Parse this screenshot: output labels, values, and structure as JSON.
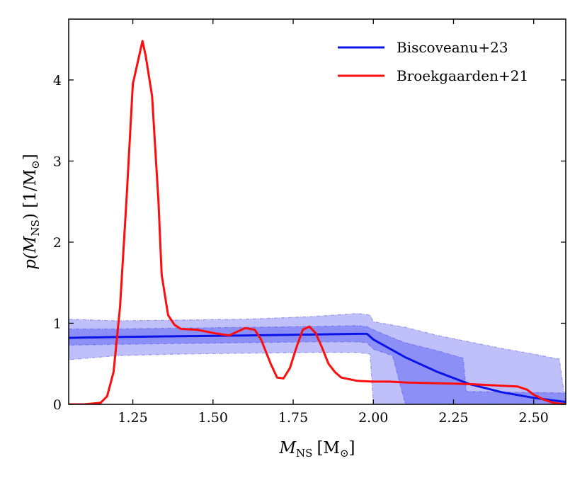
{
  "chart_data": {
    "type": "line",
    "xlabel_main": "M",
    "xlabel_sub": "NS",
    "xlabel_unit": "[M",
    "xlabel_unit_sub": "⊙",
    "xlabel_close": "]",
    "ylabel_pre": "p(M",
    "ylabel_sub": "NS",
    "ylabel_mid": ") [1/M",
    "ylabel_unit_sub": "⊙",
    "ylabel_close": "]",
    "xlim": [
      1.05,
      2.6
    ],
    "ylim": [
      0,
      4.75
    ],
    "xticks": [
      1.25,
      1.5,
      1.75,
      2.0,
      2.25,
      2.5
    ],
    "xtick_labels": [
      "1.25",
      "1.50",
      "1.75",
      "2.00",
      "2.25",
      "2.50"
    ],
    "yticks": [
      0,
      1,
      2,
      3,
      4
    ],
    "ytick_labels": [
      "0",
      "1",
      "2",
      "3",
      "4"
    ],
    "legend_position": "top-right",
    "series": [
      {
        "name": "Biscoveanu+23",
        "color": "#0a14e6",
        "x": [
          1.05,
          1.2,
          1.4,
          1.6,
          1.8,
          1.95,
          1.98,
          2.0,
          2.1,
          2.2,
          2.3,
          2.4,
          2.5,
          2.6
        ],
        "y": [
          0.82,
          0.83,
          0.84,
          0.85,
          0.86,
          0.87,
          0.87,
          0.8,
          0.58,
          0.4,
          0.25,
          0.15,
          0.08,
          0.03
        ],
        "band_90": {
          "x": [
            1.05,
            1.2,
            1.4,
            1.6,
            1.8,
            1.95,
            1.99,
            2.0,
            2.1,
            2.2,
            2.3,
            2.4,
            2.5,
            2.55,
            2.58,
            2.6
          ],
          "upper": [
            1.05,
            1.03,
            1.04,
            1.05,
            1.08,
            1.12,
            1.1,
            1.02,
            0.95,
            0.85,
            0.77,
            0.69,
            0.62,
            0.58,
            0.56,
            0.0
          ],
          "lower": [
            0.55,
            0.6,
            0.62,
            0.63,
            0.64,
            0.64,
            0.62,
            0.0,
            0.0,
            0.0,
            0.0,
            0.0,
            0.0,
            0.0,
            0.0,
            0.0
          ]
        },
        "band_50": {
          "x": [
            1.05,
            1.2,
            1.4,
            1.6,
            1.8,
            1.95,
            1.98,
            2.0,
            2.06,
            2.1,
            2.2,
            2.28,
            2.29,
            2.6
          ],
          "upper": [
            0.93,
            0.93,
            0.94,
            0.95,
            0.96,
            0.97,
            0.96,
            0.92,
            0.82,
            0.76,
            0.66,
            0.57,
            0.16,
            0.14
          ],
          "lower": [
            0.73,
            0.74,
            0.75,
            0.76,
            0.77,
            0.77,
            0.76,
            0.68,
            0.6,
            0.0,
            0.0,
            0.0,
            0.0,
            0.0
          ]
        }
      },
      {
        "name": "Broekgaarden+21",
        "color": "#ff0d0d",
        "x": [
          1.05,
          1.1,
          1.15,
          1.17,
          1.19,
          1.21,
          1.23,
          1.25,
          1.27,
          1.28,
          1.29,
          1.31,
          1.33,
          1.34,
          1.36,
          1.38,
          1.4,
          1.45,
          1.5,
          1.55,
          1.6,
          1.63,
          1.65,
          1.68,
          1.7,
          1.72,
          1.74,
          1.76,
          1.78,
          1.8,
          1.82,
          1.84,
          1.86,
          1.88,
          1.9,
          1.95,
          2.0,
          2.05,
          2.1,
          2.2,
          2.3,
          2.4,
          2.45,
          2.48,
          2.5,
          2.53,
          2.56,
          2.6
        ],
        "y": [
          0.0,
          0.0,
          0.02,
          0.1,
          0.4,
          1.2,
          2.5,
          3.95,
          4.3,
          4.48,
          4.3,
          3.8,
          2.5,
          1.6,
          1.1,
          0.98,
          0.93,
          0.92,
          0.88,
          0.85,
          0.94,
          0.92,
          0.8,
          0.5,
          0.33,
          0.32,
          0.45,
          0.7,
          0.92,
          0.96,
          0.88,
          0.7,
          0.5,
          0.4,
          0.33,
          0.29,
          0.28,
          0.28,
          0.27,
          0.26,
          0.25,
          0.23,
          0.22,
          0.18,
          0.12,
          0.06,
          0.02,
          0.0
        ]
      }
    ]
  }
}
